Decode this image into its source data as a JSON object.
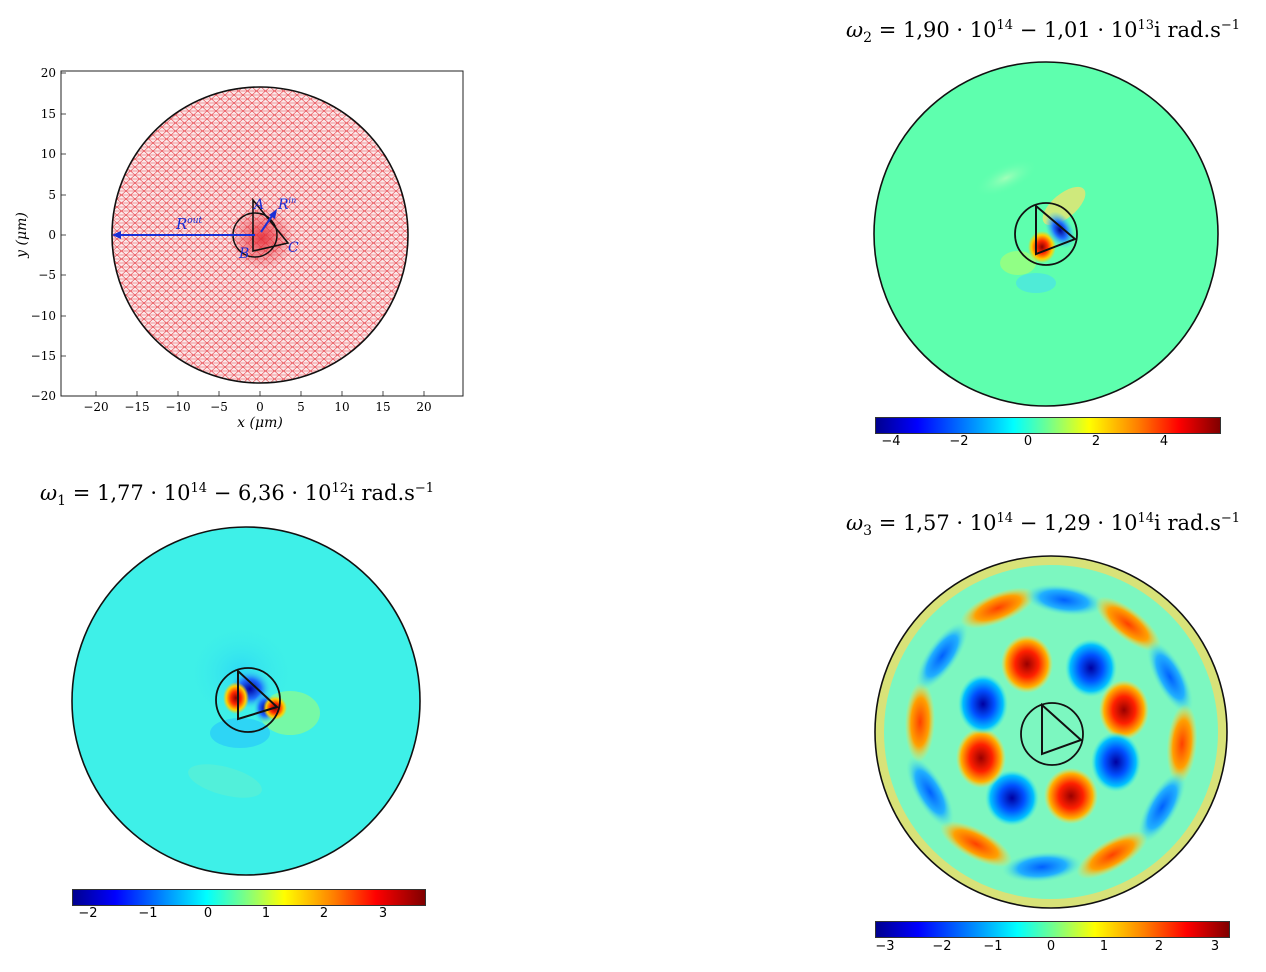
{
  "mesh_plot": {
    "x_axis_label": "x (μm)",
    "y_axis_label": "y (μm)",
    "x_ticks": [
      "−20",
      "−15",
      "−10",
      "−5",
      "0",
      "5",
      "10",
      "15",
      "20"
    ],
    "y_ticks": [
      "20",
      "15",
      "10",
      "5",
      "0",
      "−5",
      "−10",
      "−15",
      "−20"
    ],
    "label_R_out": "R",
    "label_R_out_sup": "out",
    "label_R_in": "R",
    "label_R_in_sup": "in",
    "vertex_A": "A",
    "vertex_B": "B",
    "vertex_C": "C",
    "colors": {
      "mesh": "#e8424a",
      "annotation": "#1a2fd6"
    }
  },
  "mode1": {
    "title_main": "ω",
    "title_sub": "1",
    "title_rest": " = 1,77 · 10",
    "exp1": "14",
    "title_mid": " − 6,36 · 10",
    "exp2": "12",
    "title_unit": "i rad.s",
    "exp3": "−1",
    "colorbar_ticks": [
      "−2",
      "−1",
      "0",
      "1",
      "2",
      "3"
    ]
  },
  "mode2": {
    "title_main": "ω",
    "title_sub": "2",
    "title_rest": " = 1,90 · 10",
    "exp1": "14",
    "title_mid": " − 1,01 · 10",
    "exp2": "13",
    "title_unit": "i rad.s",
    "exp3": "−1",
    "colorbar_ticks": [
      "−4",
      "−2",
      "0",
      "2",
      "4"
    ]
  },
  "mode3": {
    "title_main": "ω",
    "title_sub": "3",
    "title_rest": " = 1,57 · 10",
    "exp1": "14",
    "title_mid": " − 1,29 · 10",
    "exp2": "14",
    "title_unit": "i rad.s",
    "exp3": "−1",
    "colorbar_ticks": [
      "−3",
      "−2",
      "−1",
      "0",
      "1",
      "2",
      "3"
    ]
  }
}
